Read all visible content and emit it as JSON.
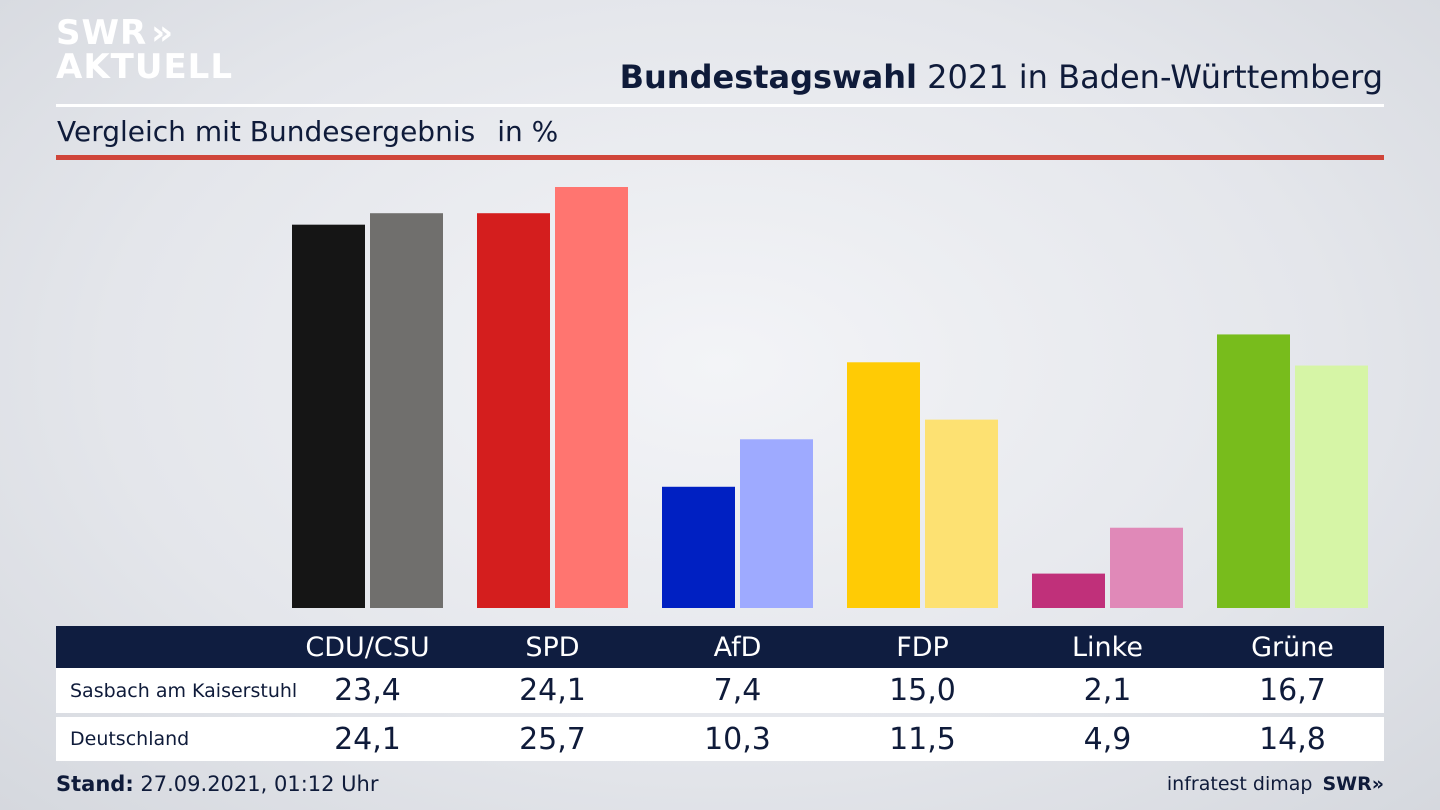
{
  "logo": {
    "line1": "SWR",
    "line1_chevrons": "»",
    "line2": "AKTUELL"
  },
  "header": {
    "title_bold": "Bundestagswahl",
    "title_rest": " 2021 in Baden-Württemberg"
  },
  "subtitle": {
    "text": "Vergleich mit Bundesergebnis",
    "unit": "in %"
  },
  "footer": {
    "stand_label": "Stand:",
    "stand_value": " 27.09.2021, 01:12 Uhr",
    "source": "infratest dimap",
    "brand": "SWR»"
  },
  "colors": {
    "navy": "#0f1d40",
    "accent_red": "#d0453a"
  },
  "chart_data": {
    "type": "bar",
    "categories": [
      "CDU/CSU",
      "SPD",
      "AfD",
      "FDP",
      "Linke",
      "Grüne"
    ],
    "series": [
      {
        "name": "Sasbach am Kaiserstuhl",
        "values": [
          23.4,
          24.1,
          7.4,
          15.0,
          2.1,
          16.7
        ],
        "labels": [
          "23,4",
          "24,1",
          "7,4",
          "15,0",
          "2,1",
          "16,7"
        ],
        "colors": [
          "#151515",
          "#d41e1e",
          "#0020c2",
          "#ffcb05",
          "#c0307a",
          "#78bc1c"
        ]
      },
      {
        "name": "Deutschland",
        "values": [
          24.1,
          25.7,
          10.3,
          11.5,
          4.9,
          14.8
        ],
        "labels": [
          "24,1",
          "25,7",
          "10,3",
          "11,5",
          "4,9",
          "14,8"
        ],
        "colors": [
          "#706f6d",
          "#ff7570",
          "#9eaaff",
          "#fde172",
          "#e089b8",
          "#d6f5a6"
        ]
      }
    ],
    "ylabel": "in %",
    "ylim": [
      0,
      25.7
    ],
    "grid": false,
    "legend": "table below chart"
  }
}
